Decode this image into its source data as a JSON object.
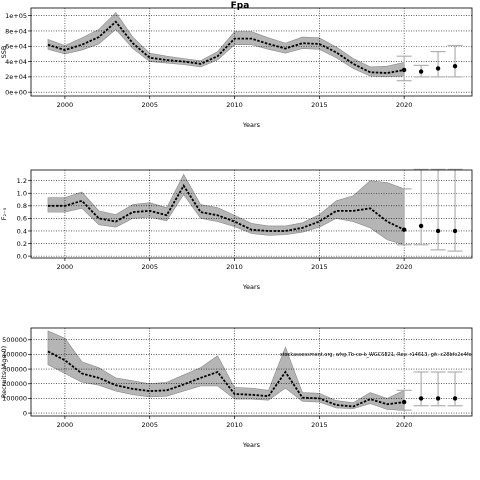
{
  "figure": {
    "title": "Fpa",
    "annotation": "stockassessment.org, whg.7b-ce-k_WGCSE21, Rev: r14613, git: c28bfc2e4fe"
  },
  "chart_data": [
    {
      "type": "line",
      "ylabel": "SSB",
      "xlabel": "Years",
      "xlim": [
        1998,
        2024
      ],
      "xticks": [
        2000,
        2005,
        2010,
        2015,
        2020
      ],
      "ylim": [
        -5000,
        110000
      ],
      "yticks": [
        0,
        20000,
        40000,
        60000,
        80000,
        100000
      ],
      "ytick_labels": [
        "0e+00",
        "2e+04",
        "4e+04",
        "6e+04",
        "8e+04",
        "1e+05"
      ],
      "grid": "dotted",
      "x": [
        1999,
        2000,
        2001,
        2002,
        2003,
        2004,
        2005,
        2006,
        2007,
        2008,
        2009,
        2010,
        2011,
        2012,
        2013,
        2014,
        2015,
        2016,
        2017,
        2018,
        2019,
        2020
      ],
      "series": [
        {
          "role": "estimate",
          "values": [
            62000,
            55000,
            62000,
            72000,
            92000,
            64000,
            45000,
            42000,
            40000,
            37000,
            47000,
            70000,
            70000,
            63000,
            57000,
            64000,
            63000,
            52000,
            37000,
            26000,
            25000,
            29000
          ]
        },
        {
          "role": "ci_lower",
          "values": [
            56000,
            50000,
            55000,
            63000,
            82000,
            57000,
            40000,
            38000,
            36000,
            33000,
            42000,
            62000,
            62000,
            56000,
            51000,
            57000,
            56000,
            45000,
            31000,
            21000,
            20000,
            21000
          ]
        },
        {
          "role": "ci_upper",
          "values": [
            69000,
            61000,
            71000,
            82000,
            104000,
            72000,
            51000,
            47000,
            44000,
            41000,
            53000,
            79000,
            79000,
            71000,
            64000,
            72000,
            71000,
            59000,
            44000,
            33000,
            34000,
            39000
          ]
        }
      ],
      "forecast": [
        {
          "x": 2020,
          "value": 29000,
          "lower": 15000,
          "upper": 47000
        },
        {
          "x": 2021,
          "value": 27000,
          "lower": 20000,
          "upper": 35000
        },
        {
          "x": 2022,
          "value": 31000,
          "lower": 20000,
          "upper": 53000
        },
        {
          "x": 2023,
          "value": 34000,
          "lower": 20000,
          "upper": 61000
        }
      ],
      "colors": {
        "band": "#b5b5b5",
        "line": "#000000",
        "forecast_bars": "#b0b0b0"
      }
    },
    {
      "type": "line",
      "ylabel": "F₂₋₅",
      "xlabel": "Years",
      "xlim": [
        1998,
        2024
      ],
      "xticks": [
        2000,
        2005,
        2010,
        2015,
        2020
      ],
      "ylim": [
        -0.03,
        1.37
      ],
      "yticks": [
        0.0,
        0.2,
        0.4,
        0.6,
        0.8,
        1.0,
        1.2
      ],
      "ytick_labels": [
        "0.0",
        "0.2",
        "0.4",
        "0.6",
        "0.8",
        "1.0",
        "1.2"
      ],
      "grid": "dotted",
      "x": [
        1999,
        2000,
        2001,
        2002,
        2003,
        2004,
        2005,
        2006,
        2007,
        2008,
        2009,
        2010,
        2011,
        2012,
        2013,
        2014,
        2015,
        2016,
        2017,
        2018,
        2019,
        2020
      ],
      "series": [
        {
          "role": "estimate",
          "values": [
            0.8,
            0.8,
            0.88,
            0.6,
            0.55,
            0.7,
            0.72,
            0.65,
            1.12,
            0.7,
            0.65,
            0.55,
            0.42,
            0.4,
            0.4,
            0.45,
            0.55,
            0.72,
            0.72,
            0.76,
            0.55,
            0.42
          ]
        },
        {
          "role": "ci_lower",
          "values": [
            0.7,
            0.7,
            0.76,
            0.5,
            0.46,
            0.6,
            0.62,
            0.56,
            0.98,
            0.6,
            0.55,
            0.47,
            0.36,
            0.33,
            0.34,
            0.38,
            0.46,
            0.6,
            0.55,
            0.45,
            0.26,
            0.18
          ]
        },
        {
          "role": "ci_upper",
          "values": [
            0.93,
            0.93,
            1.02,
            0.72,
            0.66,
            0.82,
            0.85,
            0.77,
            1.3,
            0.82,
            0.77,
            0.65,
            0.52,
            0.48,
            0.48,
            0.53,
            0.66,
            0.88,
            0.96,
            1.2,
            1.17,
            1.07
          ]
        }
      ],
      "forecast": [
        {
          "x": 2020,
          "value": 0.42,
          "lower": 0.18,
          "upper": 1.07
        },
        {
          "x": 2021,
          "value": 0.48,
          "lower": 0.18,
          "upper": 1.38
        },
        {
          "x": 2022,
          "value": 0.4,
          "lower": 0.1,
          "upper": 1.38
        },
        {
          "x": 2023,
          "value": 0.4,
          "lower": 0.08,
          "upper": 1.38
        }
      ],
      "colors": {
        "band": "#b5b5b5",
        "line": "#000000",
        "forecast_bars": "#b0b0b0"
      }
    },
    {
      "type": "line",
      "ylabel": "Recruits (Age 0)",
      "xlabel": "Years",
      "xlim": [
        1998,
        2024
      ],
      "xticks": [
        2000,
        2005,
        2010,
        2015,
        2020
      ],
      "ylim": [
        -20000000,
        580000000
      ],
      "yticks": [
        0,
        100000000,
        200000000,
        300000000,
        400000000,
        500000000
      ],
      "ytick_labels": [
        "0",
        "100000",
        "200000",
        "300000",
        "400000",
        "500000"
      ],
      "grid": "dotted",
      "x": [
        1999,
        2000,
        2001,
        2002,
        2003,
        2004,
        2005,
        2006,
        2007,
        2008,
        2009,
        2010,
        2011,
        2012,
        2013,
        2014,
        2015,
        2016,
        2017,
        2018,
        2019,
        2020
      ],
      "series": [
        {
          "role": "estimate",
          "values": [
            420000000,
            360000000,
            270000000,
            240000000,
            190000000,
            165000000,
            150000000,
            155000000,
            195000000,
            240000000,
            280000000,
            130000000,
            125000000,
            115000000,
            280000000,
            105000000,
            100000000,
            55000000,
            45000000,
            95000000,
            60000000,
            75000000
          ]
        },
        {
          "role": "ci_lower",
          "values": [
            330000000,
            270000000,
            210000000,
            190000000,
            150000000,
            125000000,
            110000000,
            115000000,
            150000000,
            185000000,
            185000000,
            95000000,
            95000000,
            88000000,
            170000000,
            80000000,
            75000000,
            35000000,
            30000000,
            65000000,
            25000000,
            20000000
          ]
        },
        {
          "role": "ci_upper",
          "values": [
            560000000,
            510000000,
            350000000,
            310000000,
            240000000,
            220000000,
            200000000,
            210000000,
            260000000,
            310000000,
            390000000,
            175000000,
            170000000,
            155000000,
            450000000,
            140000000,
            135000000,
            85000000,
            70000000,
            140000000,
            100000000,
            155000000
          ]
        }
      ],
      "forecast": [
        {
          "x": 2020,
          "value": 75000000,
          "lower": 20000000,
          "upper": 155000000
        },
        {
          "x": 2021,
          "value": 100000000,
          "lower": 50000000,
          "upper": 280000000
        },
        {
          "x": 2022,
          "value": 100000000,
          "lower": 50000000,
          "upper": 280000000
        },
        {
          "x": 2023,
          "value": 100000000,
          "lower": 50000000,
          "upper": 280000000
        }
      ],
      "colors": {
        "band": "#b5b5b5",
        "line": "#000000",
        "forecast_bars": "#b0b0b0"
      }
    }
  ]
}
